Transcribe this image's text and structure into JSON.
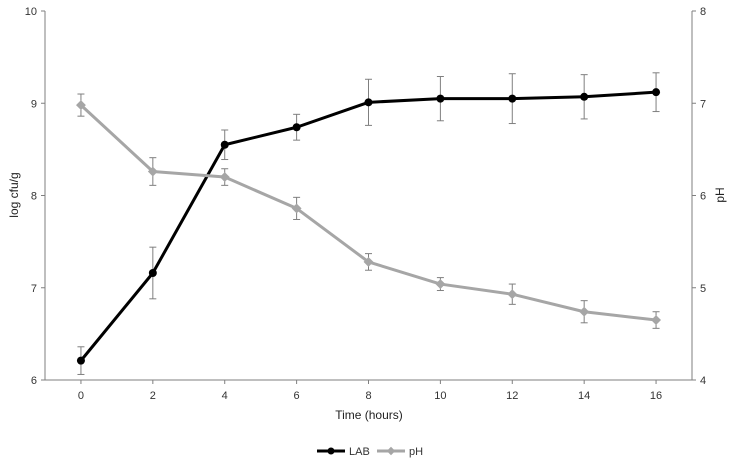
{
  "chart_data": {
    "type": "line",
    "title": "",
    "xlabel": "Time (hours)",
    "ylabel_left": "log cfu/g",
    "ylabel_right": "pH",
    "x": [
      0,
      2,
      4,
      6,
      8,
      10,
      12,
      14,
      16
    ],
    "x_ticks": [
      "0",
      "2",
      "4",
      "6",
      "8",
      "10",
      "12",
      "14",
      "16"
    ],
    "xlim": [
      -1,
      17
    ],
    "ylim_left": [
      6,
      10
    ],
    "ylim_right": [
      4,
      8
    ],
    "yticks_left": [
      "6",
      "7",
      "8",
      "9",
      "10"
    ],
    "yticks_right": [
      "4",
      "5",
      "6",
      "7",
      "8"
    ],
    "grid": false,
    "legend_position": "bottom-center",
    "series": [
      {
        "name": "LAB",
        "axis": "left",
        "color": "#000000",
        "values": [
          6.21,
          7.16,
          8.55,
          8.74,
          9.01,
          9.05,
          9.05,
          9.07,
          9.12
        ],
        "errors": [
          0.15,
          0.28,
          0.16,
          0.14,
          0.25,
          0.24,
          0.27,
          0.24,
          0.21
        ]
      },
      {
        "name": "pH",
        "axis": "right",
        "color": "#a6a6a6",
        "values": [
          6.98,
          6.26,
          6.2,
          5.86,
          5.28,
          5.04,
          4.93,
          4.74,
          4.65
        ],
        "errors": [
          0.12,
          0.15,
          0.09,
          0.12,
          0.09,
          0.07,
          0.11,
          0.12,
          0.09
        ]
      }
    ]
  }
}
